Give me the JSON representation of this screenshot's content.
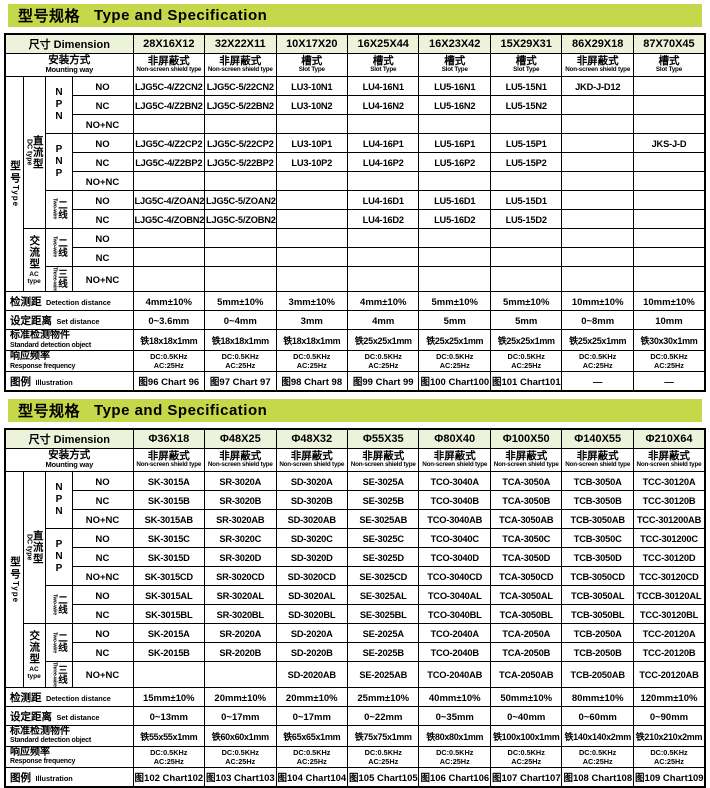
{
  "labels": {
    "dimension_zh": "尺寸",
    "dimension_en": "Dimension",
    "mounting_zh": "安装方式",
    "mounting_en": "Mounting way",
    "type_zh": "型号",
    "type_en": "Type",
    "dc_zh": "直流型",
    "dc_en": "DC type",
    "ac_zh": "交流型",
    "ac_en": "AC type",
    "npn": "NPN",
    "pnp": "PNP",
    "two_wire_zh": "二线",
    "two_wire_en": "Two-wire",
    "three_wire_zh": "三线",
    "three_wire_en": "Three-wire",
    "detection_zh": "检测距",
    "detection_en": "Detection distance",
    "set_zh": "设定距离",
    "set_en": "Set distance",
    "object_zh": "标准检测物件",
    "object_en": "Standard detection object",
    "freq_zh": "响应频率",
    "freq_en": "Response frequency",
    "illus_zh": "图例",
    "illus_en": "Illustration"
  },
  "tables": [
    {
      "title_zh": "型号规格",
      "title_en": "Type and Specification",
      "columns": [
        "28X16X12",
        "32X22X11",
        "10X17X20",
        "16X25X44",
        "16X23X42",
        "15X29X31",
        "86X29X18",
        "87X70X45"
      ],
      "mounting": [
        {
          "zh": "非屏蔽式",
          "en": "Non-screen shield type"
        },
        {
          "zh": "非屏蔽式",
          "en": "Non-screen shield type"
        },
        {
          "zh": "槽式",
          "en": "Slot Type"
        },
        {
          "zh": "槽式",
          "en": "Slot Type"
        },
        {
          "zh": "槽式",
          "en": "Slot Type"
        },
        {
          "zh": "槽式",
          "en": "Slot Type"
        },
        {
          "zh": "非屏蔽式",
          "en": "Non-screen shield type"
        },
        {
          "zh": "槽式",
          "en": "Slot Type"
        }
      ],
      "rows": [
        {
          "out": "NO",
          "models": [
            "LJG5C-4/Z2CN2",
            "LJG5C-5/22CN2",
            "LU3-10N1",
            "LU4-16N1",
            "LU5-16N1",
            "LU5-15N1",
            "JKD-J-D12",
            ""
          ]
        },
        {
          "out": "NC",
          "models": [
            "LJG5C-4/Z2BN2",
            "LJG5C-5/22BN2",
            "LU3-10N2",
            "LU4-16N2",
            "LU5-16N2",
            "LU5-15N2",
            "",
            ""
          ]
        },
        {
          "out": "NO+NC",
          "models": [
            "",
            "",
            "",
            "",
            "",
            "",
            "",
            ""
          ]
        },
        {
          "out": "NO",
          "models": [
            "LJG5C-4/Z2CP2",
            "LJG5C-5/22CP2",
            "LU3-10P1",
            "LU4-16P1",
            "LU5-16P1",
            "LU5-15P1",
            "",
            "JKS-J-D"
          ]
        },
        {
          "out": "NC",
          "models": [
            "LJG5C-4/Z2BP2",
            "LJG5C-5/22BP2",
            "LU3-10P2",
            "LU4-16P2",
            "LU5-16P2",
            "LU5-15P2",
            "",
            ""
          ]
        },
        {
          "out": "NO+NC",
          "models": [
            "",
            "",
            "",
            "",
            "",
            "",
            "",
            ""
          ]
        },
        {
          "out": "NO",
          "models": [
            "LJG5C-4/ZOAN2",
            "LJG5C-5/ZOAN2",
            "",
            "LU4-16D1",
            "LU5-16D1",
            "LU5-15D1",
            "",
            ""
          ]
        },
        {
          "out": "NC",
          "models": [
            "LJG5C-4/ZOBN2",
            "LJG5C-5/ZOBN2",
            "",
            "LU4-16D2",
            "LU5-16D2",
            "LU5-15D2",
            "",
            ""
          ]
        },
        {
          "out": "NO",
          "models": [
            "",
            "",
            "",
            "",
            "",
            "",
            "",
            ""
          ]
        },
        {
          "out": "NC",
          "models": [
            "",
            "",
            "",
            "",
            "",
            "",
            "",
            ""
          ]
        },
        {
          "out": "NO+NC",
          "models": [
            "",
            "",
            "",
            "",
            "",
            "",
            "",
            ""
          ]
        }
      ],
      "specs": {
        "detection": [
          "4mm±10%",
          "5mm±10%",
          "3mm±10%",
          "4mm±10%",
          "5mm±10%",
          "5mm±10%",
          "10mm±10%",
          "10mm±10%"
        ],
        "set": [
          "0~3.6mm",
          "0~4mm",
          "3mm",
          "4mm",
          "5mm",
          "5mm",
          "0~8mm",
          "10mm"
        ],
        "object": [
          "铁18x18x1mm",
          "铁18x18x1mm",
          "铁18x18x1mm",
          "铁25x25x1mm",
          "铁25x25x1mm",
          "铁25x25x1mm",
          "铁25x25x1mm",
          "铁30x30x1mm"
        ],
        "freq_dc": "DC:0.5KHz",
        "freq_ac": "AC:25Hz",
        "illustration": [
          "图96 Chart 96",
          "图97 Chart 97",
          "图98 Chart 98",
          "图99 Chart 99",
          "图100 Chart100",
          "图101 Chart101",
          "—",
          "—"
        ]
      }
    },
    {
      "title_zh": "型号规格",
      "title_en": "Type and Specification",
      "columns": [
        "Φ36X18",
        "Φ48X25",
        "Φ48X32",
        "Φ55X35",
        "Φ80X40",
        "Φ100X50",
        "Φ140X55",
        "Φ210X64"
      ],
      "mounting": [
        {
          "zh": "非屏蔽式",
          "en": "Non-screen shield type"
        },
        {
          "zh": "非屏蔽式",
          "en": "Non-screen shield type"
        },
        {
          "zh": "非屏蔽式",
          "en": "Non-screen shield type"
        },
        {
          "zh": "非屏蔽式",
          "en": "Non-screen shield type"
        },
        {
          "zh": "非屏蔽式",
          "en": "Non-screen shield type"
        },
        {
          "zh": "非屏蔽式",
          "en": "Non-screen shield type"
        },
        {
          "zh": "非屏蔽式",
          "en": "Non-screen shield type"
        },
        {
          "zh": "非屏蔽式",
          "en": "Non-screen shield type"
        }
      ],
      "rows": [
        {
          "out": "NO",
          "models": [
            "SK-3015A",
            "SR-3020A",
            "SD-3020A",
            "SE-3025A",
            "TCO-3040A",
            "TCA-3050A",
            "TCB-3050A",
            "TCC-30120A"
          ]
        },
        {
          "out": "NC",
          "models": [
            "SK-3015B",
            "SR-3020B",
            "SD-3020B",
            "SE-3025B",
            "TCO-3040B",
            "TCA-3050B",
            "TCB-3050B",
            "TCC-30120B"
          ]
        },
        {
          "out": "NO+NC",
          "models": [
            "SK-3015AB",
            "SR-3020AB",
            "SD-3020AB",
            "SE-3025AB",
            "TCO-3040AB",
            "TCA-3050AB",
            "TCB-3050AB",
            "TCC-301200AB"
          ]
        },
        {
          "out": "NO",
          "models": [
            "SK-3015C",
            "SR-3020C",
            "SD-3020C",
            "SE-3025C",
            "TCO-3040C",
            "TCA-3050C",
            "TCB-3050C",
            "TCC-301200C"
          ]
        },
        {
          "out": "NC",
          "models": [
            "SK-3015D",
            "SR-3020D",
            "SD-3020D",
            "SE-3025D",
            "TCO-3040D",
            "TCA-3050D",
            "TCB-3050D",
            "TCC-30120D"
          ]
        },
        {
          "out": "NO+NC",
          "models": [
            "SK-3015CD",
            "SR-3020CD",
            "SD-3020CD",
            "SE-3025CD",
            "TCO-3040CD",
            "TCA-3050CD",
            "TCB-3050CD",
            "TCC-30120CD"
          ]
        },
        {
          "out": "NO",
          "models": [
            "SK-3015AL",
            "SR-3020AL",
            "SD-3020AL",
            "SE-3025AL",
            "TCO-3040AL",
            "TCA-3050AL",
            "TCB-3050AL",
            "TCCB-30120AL"
          ]
        },
        {
          "out": "NC",
          "models": [
            "SK-3015BL",
            "SR-3020BL",
            "SD-3020BL",
            "SE-3025BL",
            "TCO-3040BL",
            "TCA-3050BL",
            "TCB-3050BL",
            "TCC-30120BL"
          ]
        },
        {
          "out": "NO",
          "models": [
            "SK-2015A",
            "SR-2020A",
            "SD-2020A",
            "SE-2025A",
            "TCO-2040A",
            "TCA-2050A",
            "TCB-2050A",
            "TCC-20120A"
          ]
        },
        {
          "out": "NC",
          "models": [
            "SK-2015B",
            "SR-2020B",
            "SD-2020B",
            "SE-2025B",
            "TCO-2040B",
            "TCA-2050B",
            "TCB-2050B",
            "TCC-20120B"
          ]
        },
        {
          "out": "NO+NC",
          "models": [
            "",
            "",
            "SD-2020AB",
            "SE-2025AB",
            "TCO-2040AB",
            "TCA-2050AB",
            "TCB-2050AB",
            "TCC-20120AB"
          ]
        }
      ],
      "specs": {
        "detection": [
          "15mm±10%",
          "20mm±10%",
          "20mm±10%",
          "25mm±10%",
          "40mm±10%",
          "50mm±10%",
          "80mm±10%",
          "120mm±10%"
        ],
        "set": [
          "0~13mm",
          "0~17mm",
          "0~17mm",
          "0~22mm",
          "0~35mm",
          "0~40mm",
          "0~60mm",
          "0~90mm"
        ],
        "object": [
          "铁55x55x1mm",
          "铁60x60x1mm",
          "铁65x65x1mm",
          "铁75x75x1mm",
          "铁80x80x1mm",
          "铁100x100x1mm",
          "铁140x140x2mm",
          "铁210x210x2mm"
        ],
        "freq_dc": "DC:0.5KHz",
        "freq_ac": "AC:25Hz",
        "illustration": [
          "图102 Chart102",
          "图103 Chart103",
          "图104 Chart104",
          "图105 Chart105",
          "图106 Chart106",
          "图107 Chart107",
          "图108 Chart108",
          "图109 Chart109"
        ]
      }
    }
  ]
}
